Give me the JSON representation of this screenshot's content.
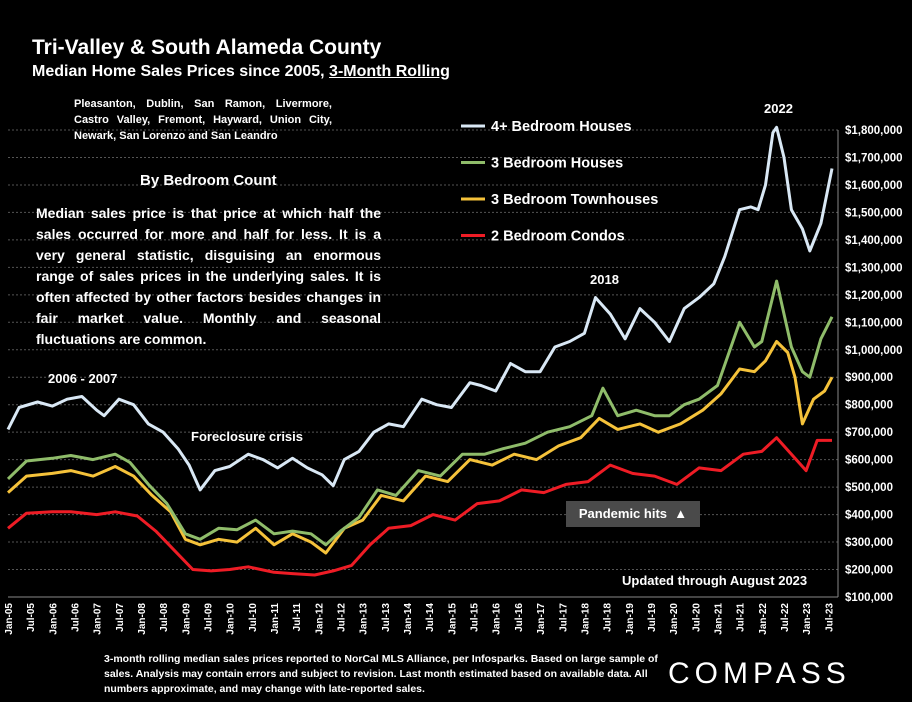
{
  "title": "Tri-Valley & South Alameda County",
  "subtitle_prefix": "Median Home Sales Prices since 2005, ",
  "subtitle_underlined": "3-Month Rolling",
  "region_text": "Pleasanton, Dublin, San Ramon, Livermore, Castro Valley, Fremont, Hayward, Union City, Newark, San Lorenzo and San Leandro",
  "bedroom_heading": "By Bedroom Count",
  "description": "Median sales price is that price at which half the sales occurred for more and half for less. It is a very general statistic, disguising an enormous range of sales prices in the underlying sales. It is often affected by other factors besides changes in fair market value. Monthly and seasonal fluctuations are common.",
  "annotations": {
    "y2006": "2006 - 2007",
    "foreclosure": "Foreclosure crisis",
    "y2018": "2018",
    "y2022": "2022",
    "pandemic": "Pandemic hits",
    "pandemic_arrow": "▲",
    "updated": "Updated through August 2023"
  },
  "footer": "3-month rolling median sales prices reported to NorCal MLS Alliance, per Infosparks.  Based on large sample of sales. Analysis may contain errors and subject to revision. Last month estimated based on available data. All numbers approximate, and may change with late-reported sales.",
  "logo": "COMPASS",
  "chart_data": {
    "type": "line",
    "y_range": [
      100000,
      1800000
    ],
    "y_ticks": [
      "$100,000",
      "$200,000",
      "$300,000",
      "$400,000",
      "$500,000",
      "$600,000",
      "$700,000",
      "$800,000",
      "$900,000",
      "$1,000,000",
      "$1,100,000",
      "$1,200,000",
      "$1,300,000",
      "$1,400,000",
      "$1,500,000",
      "$1,600,000",
      "$1,700,000",
      "$1,800,000"
    ],
    "x_range": [
      "2005-01",
      "2023-08"
    ],
    "x_ticks": [
      "Jan-05",
      "Jul-05",
      "Jan-06",
      "Jul-06",
      "Jan-07",
      "Jul-07",
      "Jan-08",
      "Jul-08",
      "Jan-09",
      "Jul-09",
      "Jan-10",
      "Jul-10",
      "Jan-11",
      "Jul-11",
      "Jan-12",
      "Jul-12",
      "Jan-13",
      "Jul-13",
      "Jan-14",
      "Jul-14",
      "Jan-15",
      "Jul-15",
      "Jan-16",
      "Jul-16",
      "Jan-17",
      "Jul-17",
      "Jan-18",
      "Jul-18",
      "Jan-19",
      "Jul-19",
      "Jan-20",
      "Jul-20",
      "Jan-21",
      "Jul-21",
      "Jan-22",
      "Jul-22",
      "Jan-23",
      "Jul-23"
    ],
    "grid": true,
    "legend": "top-right",
    "series": [
      {
        "name": "4+ Bedroom Houses",
        "color": "#d9e8f5",
        "points": [
          [
            "2005-01",
            710000
          ],
          [
            "2005-04",
            790000
          ],
          [
            "2005-09",
            810000
          ],
          [
            "2006-01",
            795000
          ],
          [
            "2006-05",
            820000
          ],
          [
            "2006-09",
            830000
          ],
          [
            "2007-01",
            780000
          ],
          [
            "2007-03",
            760000
          ],
          [
            "2007-07",
            820000
          ],
          [
            "2007-11",
            800000
          ],
          [
            "2008-03",
            730000
          ],
          [
            "2008-07",
            700000
          ],
          [
            "2008-11",
            640000
          ],
          [
            "2009-02",
            580000
          ],
          [
            "2009-05",
            490000
          ],
          [
            "2009-09",
            560000
          ],
          [
            "2010-01",
            575000
          ],
          [
            "2010-06",
            620000
          ],
          [
            "2010-10",
            600000
          ],
          [
            "2011-02",
            570000
          ],
          [
            "2011-06",
            605000
          ],
          [
            "2011-10",
            570000
          ],
          [
            "2012-02",
            545000
          ],
          [
            "2012-05",
            505000
          ],
          [
            "2012-08",
            600000
          ],
          [
            "2012-12",
            630000
          ],
          [
            "2013-04",
            700000
          ],
          [
            "2013-08",
            730000
          ],
          [
            "2013-12",
            720000
          ],
          [
            "2014-05",
            820000
          ],
          [
            "2014-09",
            800000
          ],
          [
            "2015-01",
            790000
          ],
          [
            "2015-06",
            880000
          ],
          [
            "2015-09",
            870000
          ],
          [
            "2016-01",
            850000
          ],
          [
            "2016-05",
            950000
          ],
          [
            "2016-09",
            920000
          ],
          [
            "2017-01",
            920000
          ],
          [
            "2017-05",
            1010000
          ],
          [
            "2017-09",
            1030000
          ],
          [
            "2018-01",
            1060000
          ],
          [
            "2018-04",
            1190000
          ],
          [
            "2018-08",
            1130000
          ],
          [
            "2018-12",
            1040000
          ],
          [
            "2019-04",
            1150000
          ],
          [
            "2019-08",
            1100000
          ],
          [
            "2019-12",
            1030000
          ],
          [
            "2020-04",
            1150000
          ],
          [
            "2020-08",
            1190000
          ],
          [
            "2020-12",
            1240000
          ],
          [
            "2021-03",
            1340000
          ],
          [
            "2021-07",
            1510000
          ],
          [
            "2021-10",
            1520000
          ],
          [
            "2021-12",
            1510000
          ],
          [
            "2022-02",
            1600000
          ],
          [
            "2022-04",
            1790000
          ],
          [
            "2022-05",
            1810000
          ],
          [
            "2022-07",
            1700000
          ],
          [
            "2022-09",
            1510000
          ],
          [
            "2022-12",
            1440000
          ],
          [
            "2023-02",
            1360000
          ],
          [
            "2023-05",
            1460000
          ],
          [
            "2023-08",
            1660000
          ]
        ]
      },
      {
        "name": "3 Bedroom Houses",
        "color": "#8fbc6a",
        "points": [
          [
            "2005-01",
            530000
          ],
          [
            "2005-06",
            595000
          ],
          [
            "2006-01",
            605000
          ],
          [
            "2006-06",
            615000
          ],
          [
            "2006-12",
            600000
          ],
          [
            "2007-06",
            620000
          ],
          [
            "2007-10",
            590000
          ],
          [
            "2008-03",
            510000
          ],
          [
            "2008-08",
            440000
          ],
          [
            "2009-01",
            330000
          ],
          [
            "2009-05",
            310000
          ],
          [
            "2009-10",
            350000
          ],
          [
            "2010-03",
            345000
          ],
          [
            "2010-08",
            380000
          ],
          [
            "2011-01",
            330000
          ],
          [
            "2011-06",
            340000
          ],
          [
            "2011-11",
            330000
          ],
          [
            "2012-03",
            290000
          ],
          [
            "2012-07",
            340000
          ],
          [
            "2012-12",
            390000
          ],
          [
            "2013-05",
            490000
          ],
          [
            "2013-10",
            470000
          ],
          [
            "2014-04",
            560000
          ],
          [
            "2014-10",
            540000
          ],
          [
            "2015-04",
            620000
          ],
          [
            "2015-10",
            620000
          ],
          [
            "2016-03",
            640000
          ],
          [
            "2016-09",
            660000
          ],
          [
            "2017-03",
            700000
          ],
          [
            "2017-09",
            720000
          ],
          [
            "2018-03",
            760000
          ],
          [
            "2018-06",
            860000
          ],
          [
            "2018-10",
            760000
          ],
          [
            "2019-03",
            780000
          ],
          [
            "2019-08",
            760000
          ],
          [
            "2019-12",
            760000
          ],
          [
            "2020-04",
            800000
          ],
          [
            "2020-08",
            820000
          ],
          [
            "2021-01",
            870000
          ],
          [
            "2021-07",
            1100000
          ],
          [
            "2021-11",
            1010000
          ],
          [
            "2022-01",
            1030000
          ],
          [
            "2022-05",
            1250000
          ],
          [
            "2022-09",
            1010000
          ],
          [
            "2022-12",
            920000
          ],
          [
            "2023-02",
            900000
          ],
          [
            "2023-05",
            1040000
          ],
          [
            "2023-08",
            1120000
          ]
        ]
      },
      {
        "name": "3 Bedroom Townhouses",
        "color": "#f5c23a",
        "points": [
          [
            "2005-01",
            480000
          ],
          [
            "2005-06",
            540000
          ],
          [
            "2006-01",
            550000
          ],
          [
            "2006-06",
            560000
          ],
          [
            "2006-12",
            540000
          ],
          [
            "2007-06",
            575000
          ],
          [
            "2007-11",
            540000
          ],
          [
            "2008-04",
            470000
          ],
          [
            "2008-09",
            410000
          ],
          [
            "2009-01",
            310000
          ],
          [
            "2009-05",
            290000
          ],
          [
            "2009-10",
            310000
          ],
          [
            "2010-03",
            300000
          ],
          [
            "2010-08",
            350000
          ],
          [
            "2011-01",
            290000
          ],
          [
            "2011-06",
            330000
          ],
          [
            "2011-11",
            300000
          ],
          [
            "2012-03",
            260000
          ],
          [
            "2012-08",
            350000
          ],
          [
            "2013-01",
            380000
          ],
          [
            "2013-06",
            470000
          ],
          [
            "2013-12",
            450000
          ],
          [
            "2014-06",
            540000
          ],
          [
            "2014-12",
            520000
          ],
          [
            "2015-06",
            600000
          ],
          [
            "2015-12",
            580000
          ],
          [
            "2016-06",
            620000
          ],
          [
            "2016-12",
            600000
          ],
          [
            "2017-06",
            650000
          ],
          [
            "2017-12",
            680000
          ],
          [
            "2018-05",
            750000
          ],
          [
            "2018-10",
            710000
          ],
          [
            "2019-04",
            730000
          ],
          [
            "2019-09",
            700000
          ],
          [
            "2020-03",
            730000
          ],
          [
            "2020-09",
            780000
          ],
          [
            "2021-02",
            840000
          ],
          [
            "2021-07",
            930000
          ],
          [
            "2021-11",
            920000
          ],
          [
            "2022-02",
            960000
          ],
          [
            "2022-05",
            1030000
          ],
          [
            "2022-08",
            990000
          ],
          [
            "2022-10",
            900000
          ],
          [
            "2022-12",
            730000
          ],
          [
            "2023-03",
            820000
          ],
          [
            "2023-06",
            850000
          ],
          [
            "2023-08",
            900000
          ]
        ]
      },
      {
        "name": "2 Bedroom Condos",
        "color": "#ee1c25",
        "points": [
          [
            "2005-01",
            350000
          ],
          [
            "2005-06",
            405000
          ],
          [
            "2006-01",
            410000
          ],
          [
            "2006-06",
            410000
          ],
          [
            "2007-01",
            400000
          ],
          [
            "2007-06",
            410000
          ],
          [
            "2007-12",
            395000
          ],
          [
            "2008-05",
            340000
          ],
          [
            "2008-10",
            270000
          ],
          [
            "2009-03",
            200000
          ],
          [
            "2009-08",
            195000
          ],
          [
            "2010-01",
            200000
          ],
          [
            "2010-06",
            210000
          ],
          [
            "2011-01",
            190000
          ],
          [
            "2011-06",
            185000
          ],
          [
            "2011-12",
            180000
          ],
          [
            "2012-05",
            195000
          ],
          [
            "2012-10",
            215000
          ],
          [
            "2013-03",
            290000
          ],
          [
            "2013-08",
            350000
          ],
          [
            "2014-02",
            360000
          ],
          [
            "2014-08",
            400000
          ],
          [
            "2015-02",
            380000
          ],
          [
            "2015-08",
            440000
          ],
          [
            "2016-02",
            450000
          ],
          [
            "2016-08",
            490000
          ],
          [
            "2017-02",
            480000
          ],
          [
            "2017-08",
            510000
          ],
          [
            "2018-02",
            520000
          ],
          [
            "2018-08",
            580000
          ],
          [
            "2019-02",
            550000
          ],
          [
            "2019-08",
            540000
          ],
          [
            "2020-02",
            510000
          ],
          [
            "2020-08",
            570000
          ],
          [
            "2021-02",
            560000
          ],
          [
            "2021-08",
            620000
          ],
          [
            "2022-01",
            630000
          ],
          [
            "2022-05",
            680000
          ],
          [
            "2022-09",
            620000
          ],
          [
            "2023-01",
            560000
          ],
          [
            "2023-04",
            670000
          ],
          [
            "2023-08",
            670000
          ]
        ]
      }
    ]
  }
}
